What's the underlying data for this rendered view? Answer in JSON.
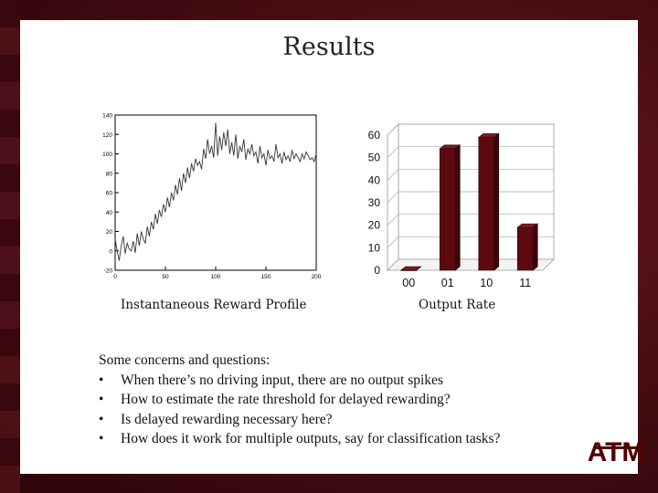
{
  "slide": {
    "title": "Results",
    "left_caption": "Instantaneous Reward Profile",
    "right_caption": "Output Rate",
    "intro": "Some concerns and questions:",
    "bullets": [
      "When there’s no driving input, there are no output spikes",
      "How to estimate the rate threshold for delayed rewarding?",
      "Is delayed rewarding necessary here?",
      "How does it work for multiple outputs, say for classification tasks?"
    ]
  },
  "logo": {
    "text": "ATM"
  },
  "colors": {
    "bar": "#5c0a10",
    "bar_dark": "#3a0508",
    "line": "#333333",
    "maroon": "#500000"
  },
  "chart_data": [
    {
      "type": "line",
      "title": "",
      "xlabel": "",
      "ylabel": "",
      "xlim": [
        0,
        200
      ],
      "ylim": [
        -20,
        140
      ],
      "xticks": [
        0,
        50,
        100,
        150,
        200
      ],
      "yticks": [
        -20,
        0,
        20,
        40,
        60,
        80,
        100,
        120,
        140
      ],
      "grid": false,
      "series": [
        {
          "x": [
            0,
            2,
            4,
            6,
            8,
            10,
            12,
            14,
            16,
            18,
            20,
            22,
            24,
            26,
            28,
            30,
            32,
            34,
            36,
            38,
            40,
            42,
            44,
            46,
            48,
            50,
            52,
            54,
            56,
            58,
            60,
            62,
            64,
            66,
            68,
            70,
            72,
            74,
            76,
            78,
            80,
            82,
            84,
            86,
            88,
            90,
            92,
            94,
            96,
            98,
            100,
            102,
            104,
            106,
            108,
            110,
            112,
            114,
            116,
            118,
            120,
            122,
            124,
            126,
            128,
            130,
            132,
            134,
            136,
            138,
            140,
            142,
            144,
            146,
            148,
            150,
            152,
            154,
            156,
            158,
            160,
            162,
            164,
            166,
            168,
            170,
            172,
            174,
            176,
            178,
            180,
            182,
            184,
            186,
            188,
            190,
            192,
            194,
            196,
            198,
            200
          ],
          "y": [
            12,
            0,
            -10,
            5,
            15,
            -3,
            8,
            2,
            0,
            10,
            -2,
            18,
            5,
            20,
            12,
            8,
            25,
            15,
            30,
            22,
            38,
            28,
            42,
            35,
            48,
            40,
            55,
            45,
            60,
            52,
            68,
            58,
            75,
            62,
            80,
            70,
            86,
            75,
            90,
            82,
            95,
            88,
            92,
            84,
            105,
            95,
            115,
            100,
            108,
            96,
            132,
            98,
            118,
            104,
            122,
            108,
            125,
            100,
            112,
            98,
            120,
            95,
            108,
            102,
            115,
            94,
            105,
            100,
            110,
            98,
            102,
            90,
            108,
            96,
            100,
            88,
            104,
            95,
            98,
            92,
            110,
            96,
            100,
            90,
            102,
            94,
            98,
            92,
            104,
            95,
            100,
            96,
            92,
            100,
            95,
            102,
            98,
            94,
            96,
            92,
            100
          ]
        }
      ]
    },
    {
      "type": "bar",
      "title": "",
      "categories": [
        "00",
        "01",
        "10",
        "11"
      ],
      "values": [
        0,
        54,
        59,
        19
      ],
      "ylim": [
        0,
        60
      ],
      "yticks": [
        0,
        10,
        20,
        30,
        40,
        50,
        60
      ],
      "grid": true
    }
  ]
}
